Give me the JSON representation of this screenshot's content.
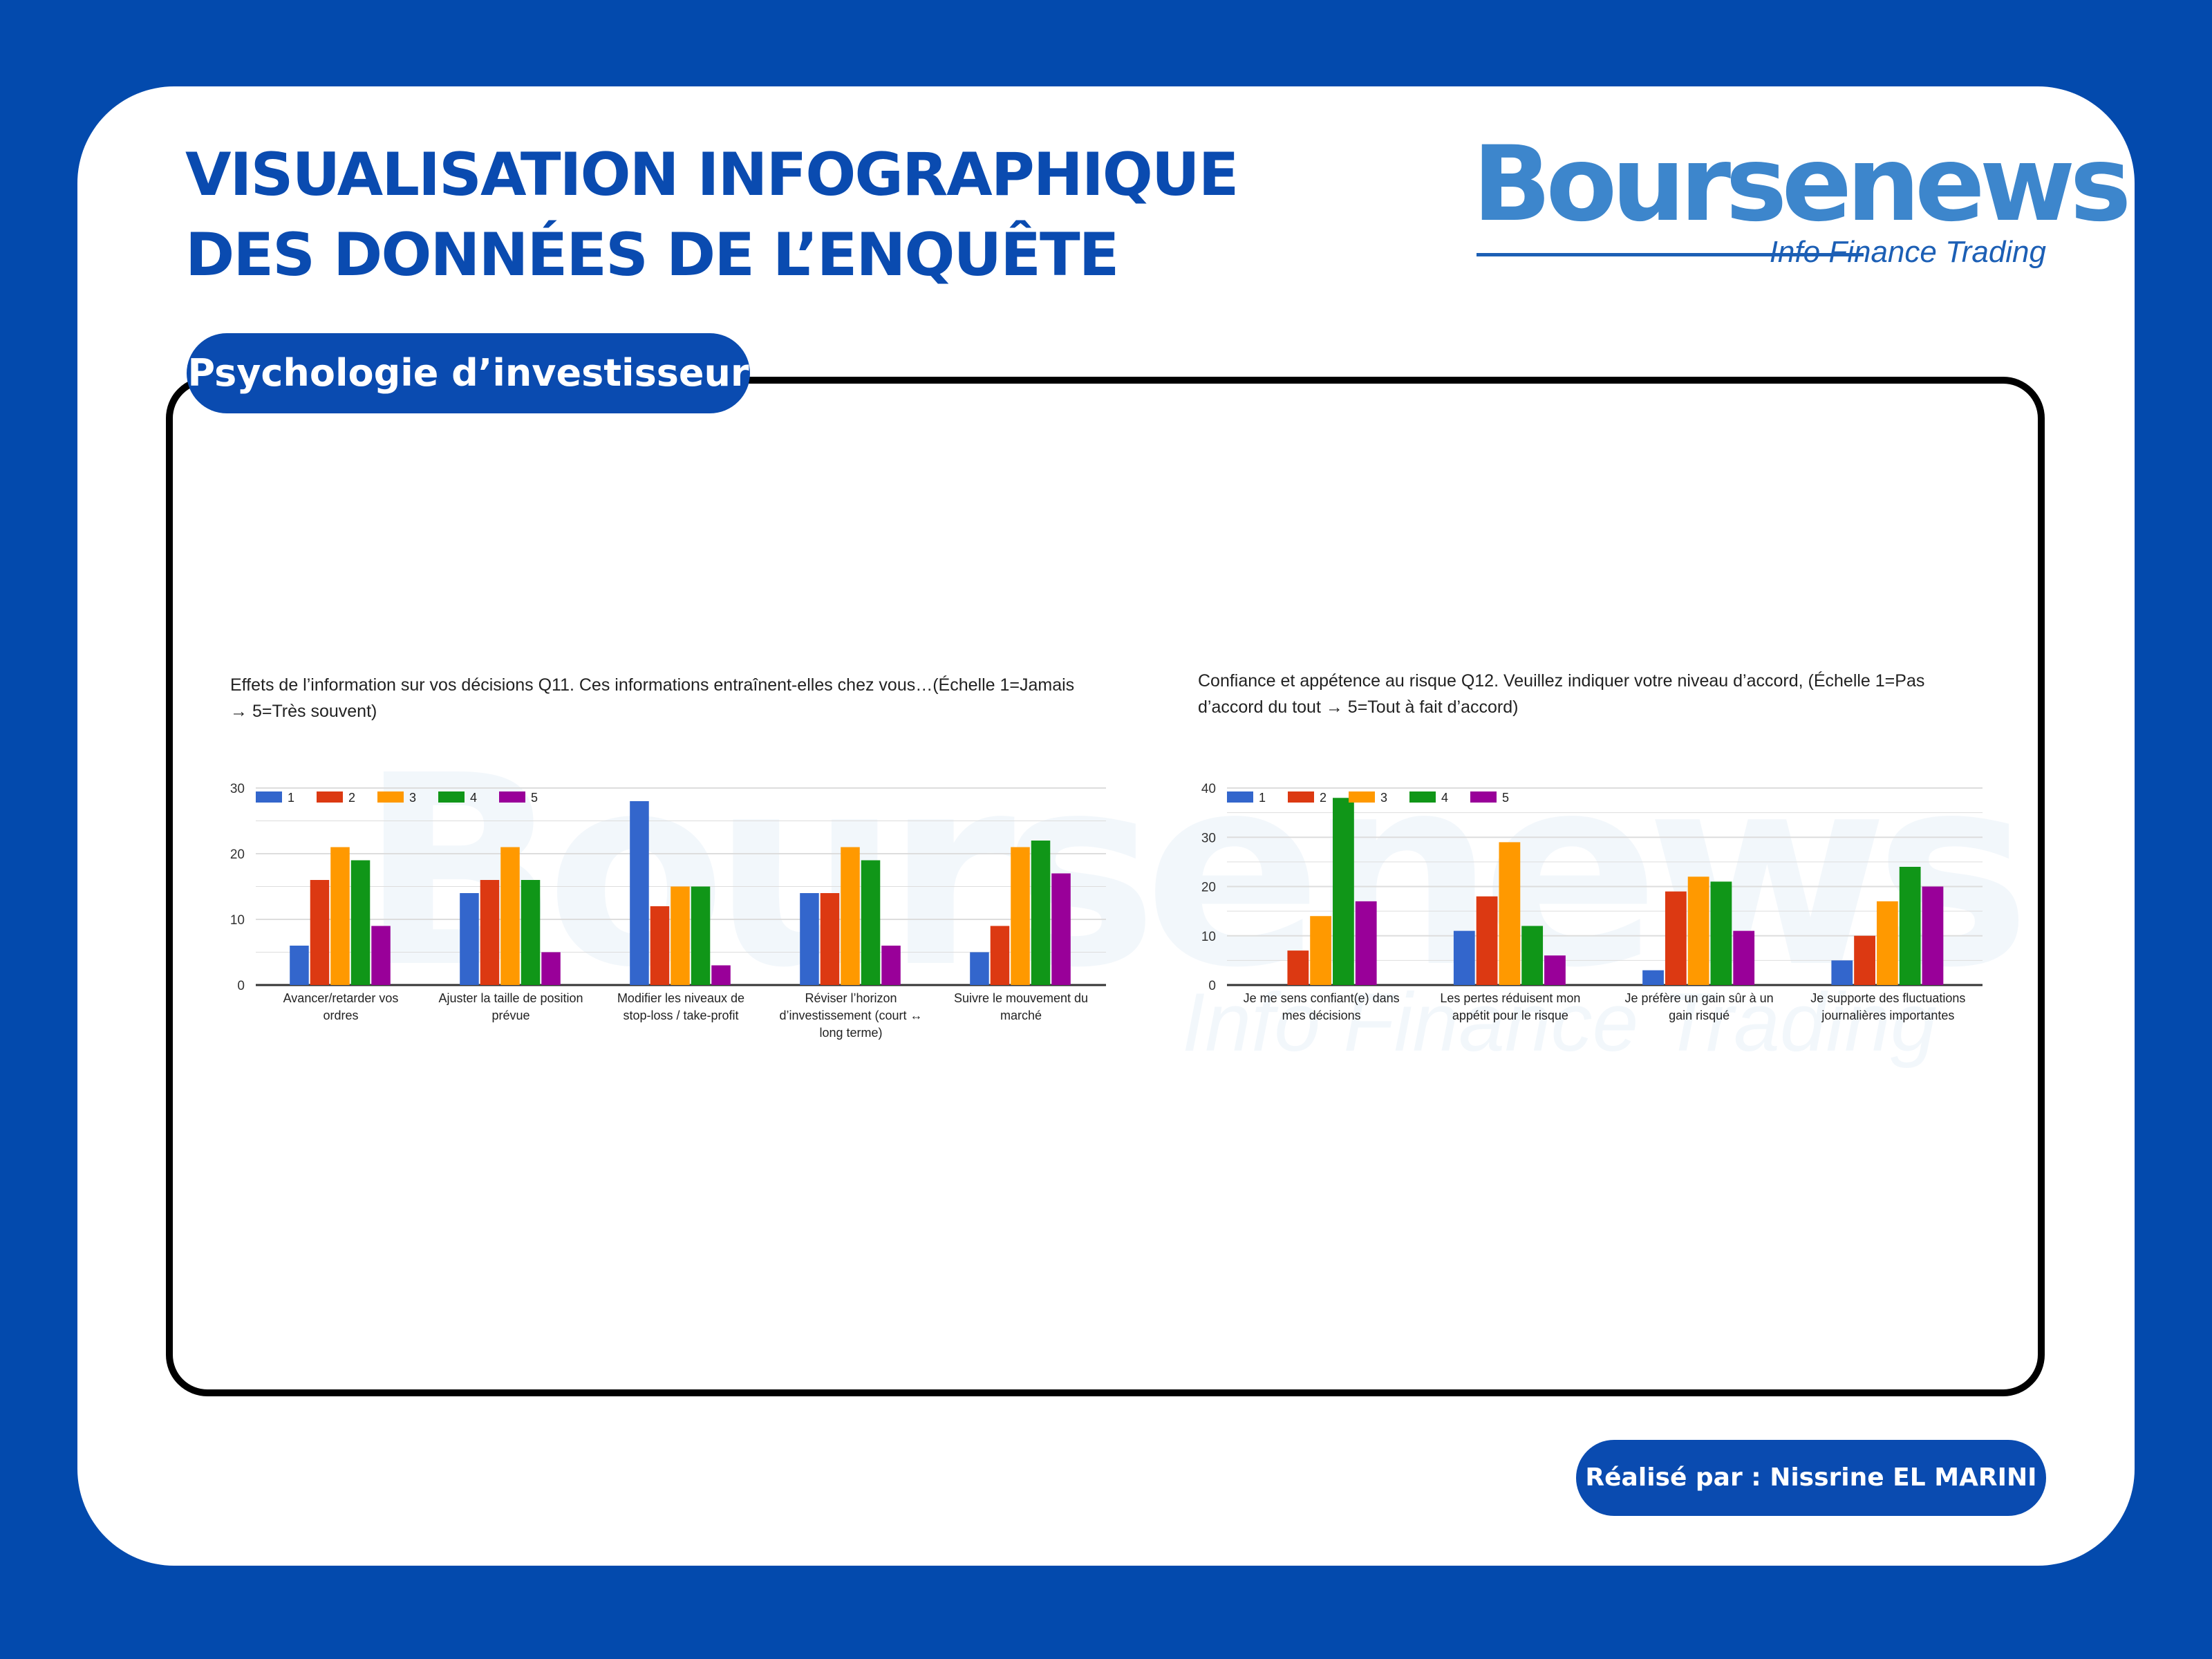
{
  "header": {
    "title_line1": "VISUALISATION INFOGRAPHIQUE",
    "title_line2": "DES DONNÉES DE L’ENQUÊTE",
    "logo_word": "Boursenews",
    "logo_tagline": "Info Finance Trading"
  },
  "section": {
    "label": "Psychologie d’investisseur"
  },
  "footer": {
    "credit": "Réalisé par : Nissrine EL MARINI"
  },
  "colors": {
    "1": "#3366cc",
    "2": "#dc3912",
    "3": "#ff9900",
    "4": "#109618",
    "5": "#990099"
  },
  "chart_data": [
    {
      "type": "bar",
      "title": "Effets de l’information sur vos décisions   Q11. Ces informations entraînent-elles chez vous…(Échelle 1=Jamais → 5=Très souvent)",
      "title_lines": [
        "Effets de l’information sur vos décisions   Q11. Ces informations entraînent-elles chez vous…(Échelle 1=Jamais",
        "→ 5=Très souvent)"
      ],
      "categories": [
        [
          "Avancer/retarder vos",
          "ordres"
        ],
        [
          "Ajuster la taille de position",
          "prévue"
        ],
        [
          "Modifier les niveaux de",
          "stop-loss / take-profit"
        ],
        [
          "Réviser l’horizon",
          "d’investissement (court ↔",
          "long terme)"
        ],
        [
          "Suivre le mouvement du",
          "marché"
        ]
      ],
      "ylim": [
        0,
        30
      ],
      "yticks": [
        0,
        10,
        20,
        30
      ],
      "legend": "top-left",
      "series": [
        {
          "name": "1",
          "values": [
            6,
            14,
            28,
            14,
            5
          ]
        },
        {
          "name": "2",
          "values": [
            16,
            16,
            12,
            14,
            9
          ]
        },
        {
          "name": "3",
          "values": [
            21,
            21,
            15,
            21,
            21
          ]
        },
        {
          "name": "4",
          "values": [
            19,
            16,
            15,
            19,
            22
          ]
        },
        {
          "name": "5",
          "values": [
            9,
            5,
            3,
            6,
            17
          ]
        }
      ]
    },
    {
      "type": "bar",
      "title": "Confiance et appétence au risque    Q12. Veuillez indiquer votre niveau d’accord, (Échelle 1=Pas d’accord du tout → 5=Tout à fait d’accord)",
      "title_lines": [
        "Confiance et appétence au risque    Q12. Veuillez indiquer votre niveau d’accord, (Échelle 1=Pas",
        "d’accord du tout → 5=Tout à fait d’accord)"
      ],
      "categories": [
        [
          "Je me sens confiant(e) dans",
          "mes décisions"
        ],
        [
          "Les pertes réduisent mon",
          "appétit pour le risque"
        ],
        [
          "Je préfère un gain sûr à un",
          "gain risqué"
        ],
        [
          "Je supporte des fluctuations",
          "journalières importantes"
        ]
      ],
      "ylim": [
        0,
        40
      ],
      "yticks": [
        0,
        10,
        20,
        30,
        40
      ],
      "legend": "top-left",
      "series": [
        {
          "name": "1",
          "values": [
            0,
            11,
            3,
            5
          ]
        },
        {
          "name": "2",
          "values": [
            7,
            18,
            19,
            10
          ]
        },
        {
          "name": "3",
          "values": [
            14,
            29,
            22,
            17
          ]
        },
        {
          "name": "4",
          "values": [
            38,
            12,
            21,
            24
          ]
        },
        {
          "name": "5",
          "values": [
            17,
            6,
            11,
            20
          ]
        }
      ]
    }
  ]
}
